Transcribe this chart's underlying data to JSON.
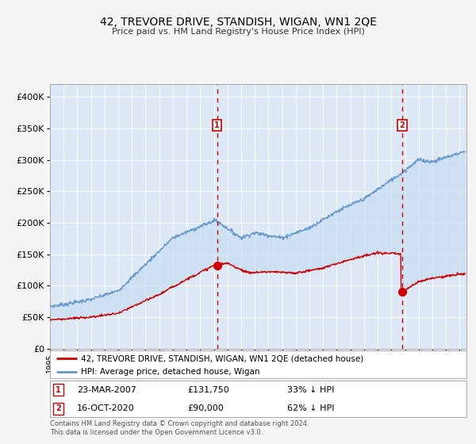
{
  "title": "42, TREVORE DRIVE, STANDISH, WIGAN, WN1 2QE",
  "subtitle": "Price paid vs. HM Land Registry's House Price Index (HPI)",
  "fig_bg_color": "#f5f5f5",
  "plot_bg_color": "#dce8f5",
  "red_line_label": "42, TREVORE DRIVE, STANDISH, WIGAN, WN1 2QE (detached house)",
  "blue_line_label": "HPI: Average price, detached house, Wigan",
  "sale1_date": "23-MAR-2007",
  "sale1_price": "£131,750",
  "sale1_pct": "33% ↓ HPI",
  "sale1_year": 2007.23,
  "sale2_date": "16-OCT-2020",
  "sale2_price": "£90,000",
  "sale2_pct": "62% ↓ HPI",
  "sale2_year": 2020.79,
  "footer": "Contains HM Land Registry data © Crown copyright and database right 2024.\nThis data is licensed under the Open Government Licence v3.0.",
  "ylim": [
    0,
    420000
  ],
  "xlim_start": 1995.0,
  "xlim_end": 2025.5,
  "red_color": "#cc0000",
  "blue_color": "#6699cc",
  "marker1_value": 131750,
  "marker2_value": 90000
}
